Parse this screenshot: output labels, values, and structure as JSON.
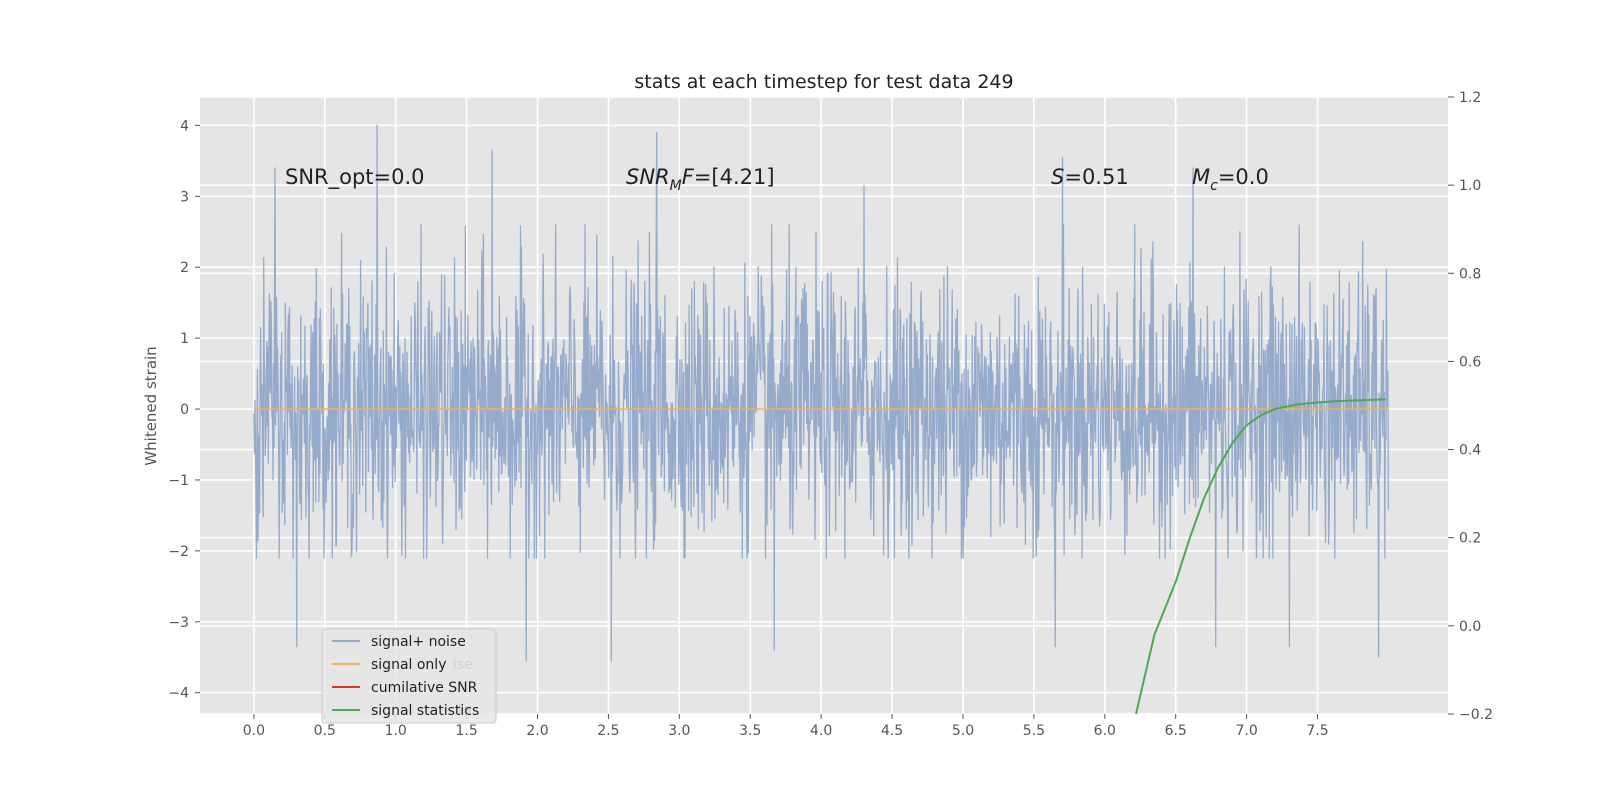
{
  "chart_data": {
    "type": "line",
    "title": "stats at each timestep for test data 249",
    "xlabel": "",
    "ylabel": "Whitened strain",
    "xlim": [
      -0.38,
      8.42
    ],
    "ylim": [
      -4.3,
      4.4
    ],
    "y2lim": [
      -0.2,
      1.2
    ],
    "x_ticks": [
      "0.0",
      "0.5",
      "1.0",
      "1.5",
      "2.0",
      "2.5",
      "3.0",
      "3.5",
      "4.0",
      "4.5",
      "5.0",
      "5.5",
      "6.0",
      "6.5",
      "7.0",
      "7.5"
    ],
    "y_ticks": [
      "4",
      "3",
      "2",
      "1",
      "0",
      "−1",
      "−2",
      "−3",
      "−4"
    ],
    "y2_ticks": [
      "1.2",
      "1.0",
      "0.8",
      "0.6",
      "0.4",
      "0.2",
      "0.0",
      "−0.2"
    ],
    "grid": true,
    "legend_position": "lower-left",
    "annotations": {
      "snr_opt": "SNR_opt=0.0",
      "snr_mf_main": "SNR",
      "snr_mf_sub": "M",
      "snr_mf_it": "F",
      "snr_mf_rest": "=[4.21]",
      "s_sym": "S",
      "s_val": "=0.51",
      "mc_sym": "M",
      "mc_sub": "c",
      "mc_val": "=0.0"
    },
    "legend_ghost_labels": [
      "ise",
      "ts"
    ],
    "series": [
      {
        "name": "signal+ noise",
        "color": "#96aacb",
        "axis": "left",
        "x_range": [
          0.0,
          8.0
        ],
        "typical_band": [
          -2.1,
          2.6
        ],
        "peaks": [
          {
            "x": 0.15,
            "y": 3.4
          },
          {
            "x": 0.87,
            "y": 4.0
          },
          {
            "x": 1.68,
            "y": 3.65
          },
          {
            "x": 2.84,
            "y": 3.9
          },
          {
            "x": 4.3,
            "y": 3.15
          },
          {
            "x": 5.7,
            "y": 3.55
          },
          {
            "x": 6.62,
            "y": 3.4
          },
          {
            "x": 7.3,
            "y": 3.15
          },
          {
            "x": 0.3,
            "y": -3.35
          },
          {
            "x": 1.92,
            "y": -3.55
          },
          {
            "x": 2.52,
            "y": -3.55
          },
          {
            "x": 3.67,
            "y": -3.4
          },
          {
            "x": 5.65,
            "y": -3.35
          },
          {
            "x": 6.78,
            "y": -3.35
          },
          {
            "x": 7.3,
            "y": -3.35
          },
          {
            "x": 7.93,
            "y": -3.5
          }
        ]
      },
      {
        "name": "signal only",
        "color": "#f2b24e",
        "axis": "left",
        "x": [
          0.0,
          8.0
        ],
        "y": [
          0.0,
          0.0
        ]
      },
      {
        "name": "cumilative SNR",
        "color": "#e0332b",
        "axis": "right",
        "x": [],
        "y": []
      },
      {
        "name": "signal statistics",
        "color": "#4ea752",
        "axis": "right",
        "x": [
          6.22,
          6.35,
          6.5,
          6.6,
          6.7,
          6.8,
          6.9,
          7.0,
          7.1,
          7.2,
          7.35,
          7.5,
          7.65,
          7.8,
          7.98
        ],
        "y": [
          -0.2,
          -0.02,
          0.1,
          0.2,
          0.29,
          0.36,
          0.415,
          0.455,
          0.478,
          0.492,
          0.502,
          0.507,
          0.51,
          0.512,
          0.514
        ]
      }
    ]
  }
}
